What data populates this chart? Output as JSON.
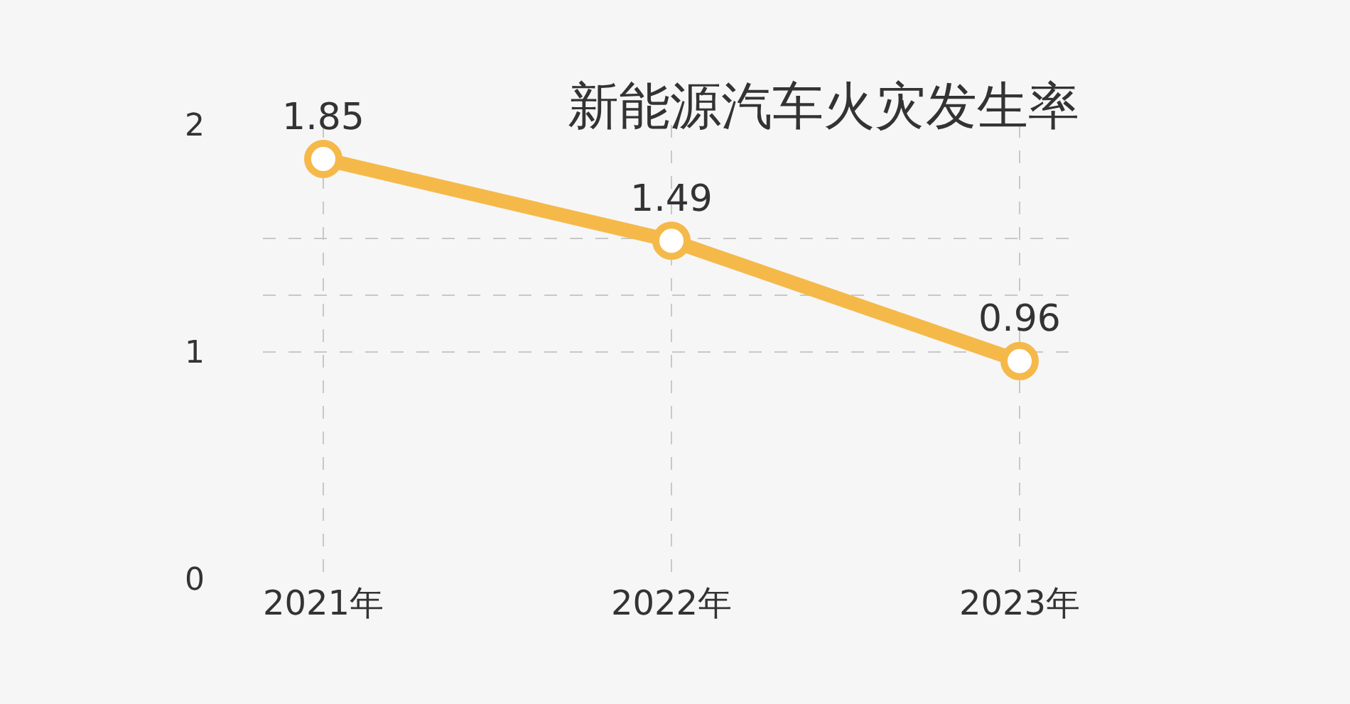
{
  "chart_data": {
    "type": "line",
    "title": "新能源汽车火灾发生率",
    "categories": [
      "2021年",
      "2022年",
      "2023年"
    ],
    "series": [
      {
        "color": "#f5b94a",
        "values": [
          1.85,
          1.49,
          0.96
        ]
      }
    ],
    "ylim": [
      0,
      2
    ],
    "yticks": [
      0,
      1,
      {
        "value": 1.25,
        "label": null
      },
      {
        "value": 1.5,
        "label": null
      },
      2
    ],
    "grid": true,
    "data_labels": true,
    "marker": "circle",
    "line_style": "solid"
  }
}
